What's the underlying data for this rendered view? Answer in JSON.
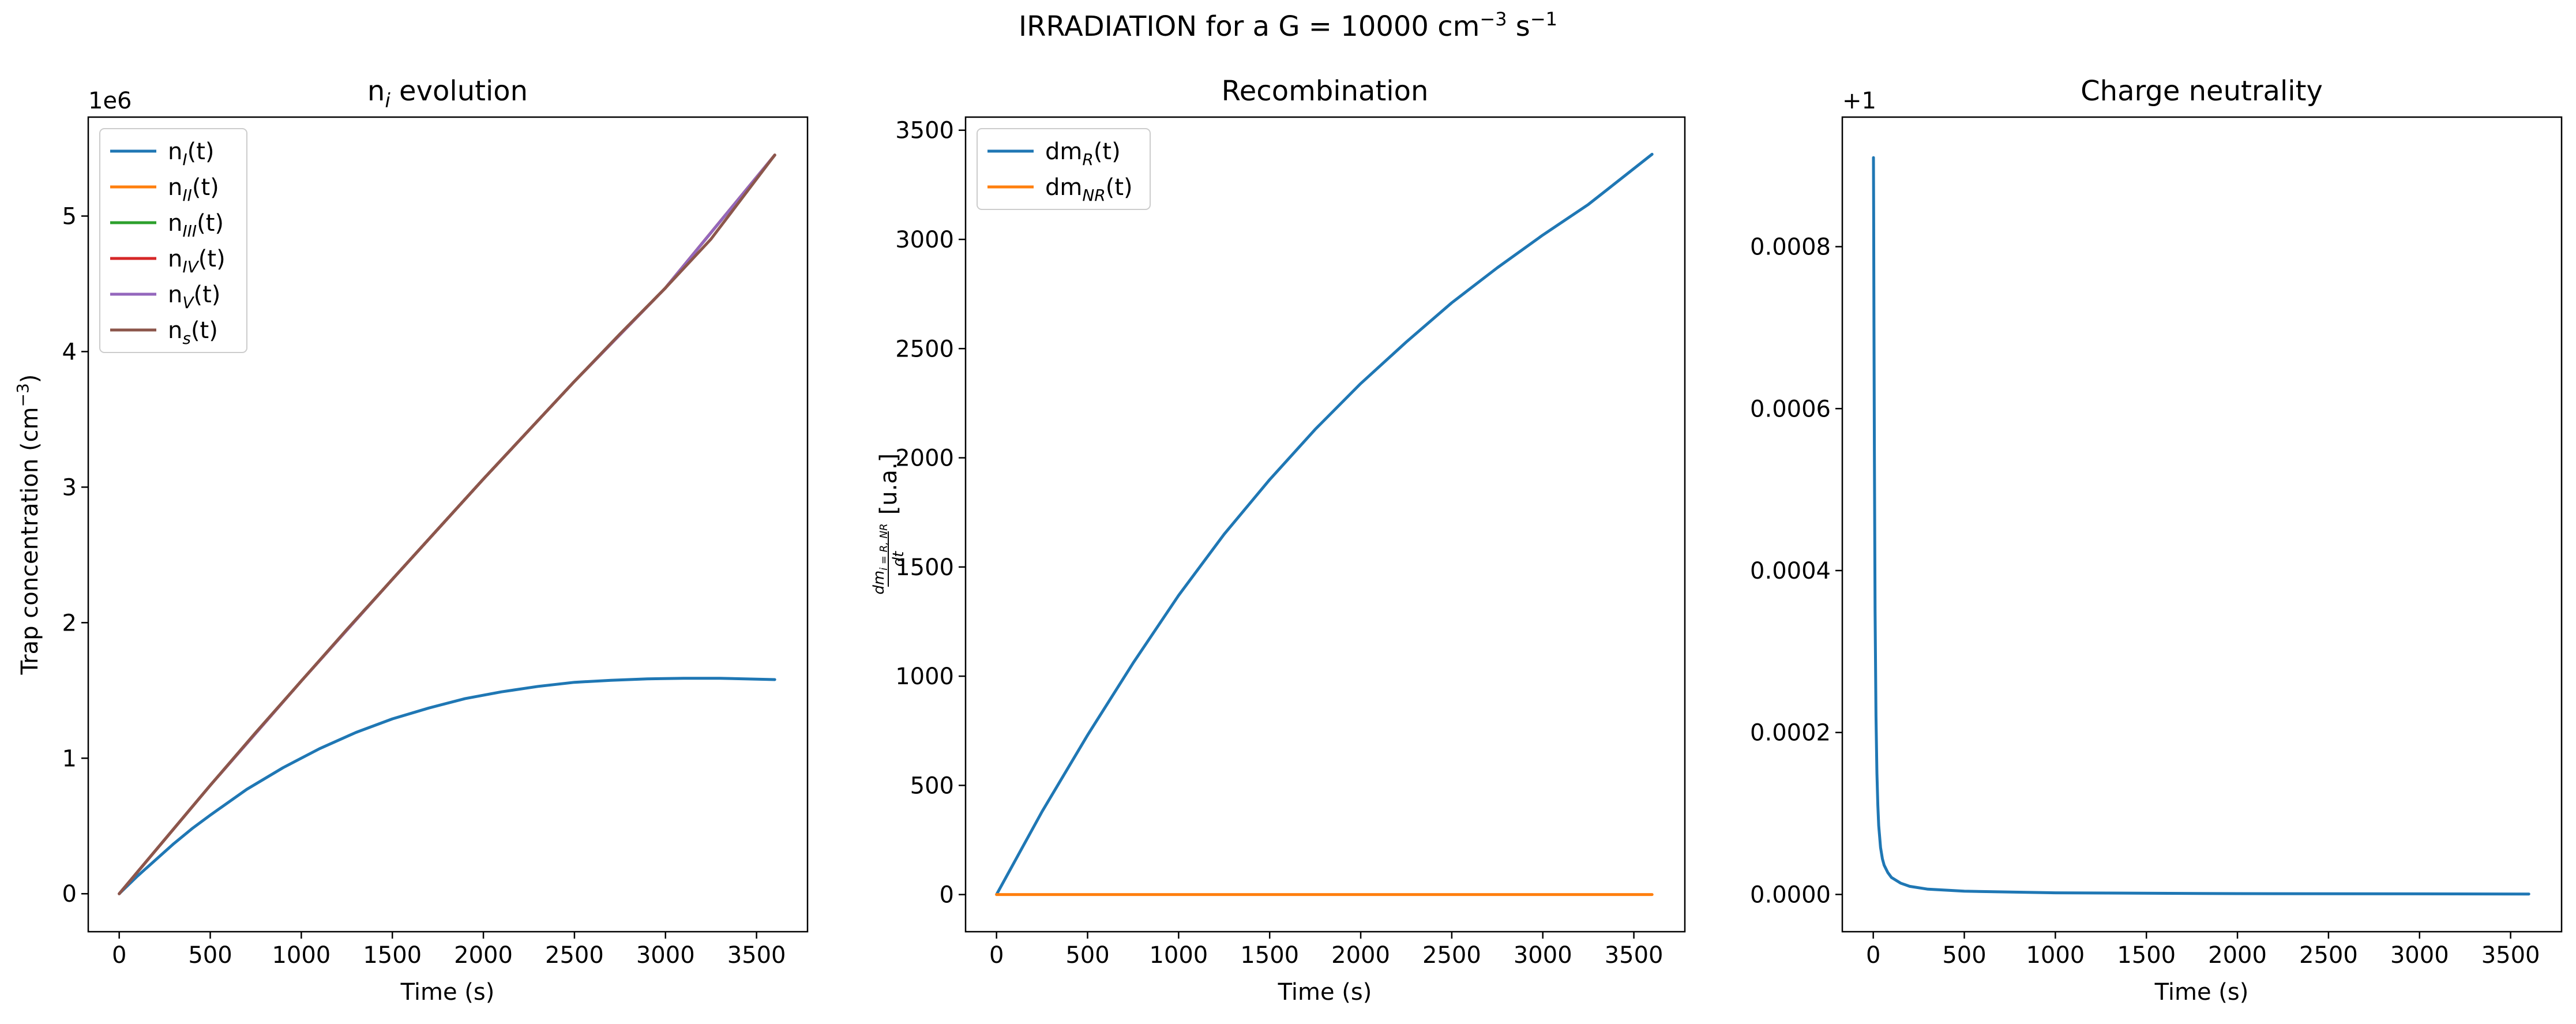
{
  "figure": {
    "suptitle": "IRRADIATION for a G = 10000 cm",
    "suptitle_sup1": "−3",
    "suptitle_mid": " s",
    "suptitle_sup2": "−1"
  },
  "chart_data": [
    {
      "type": "line",
      "title_main": "n",
      "title_sub": "i",
      "title_rest": " evolution",
      "xlabel": "Time (s)",
      "ylabel_main": "Trap concentration (cm",
      "ylabel_sup": "−3",
      "ylabel_end": ")",
      "offset_text": "1e6",
      "xlim": [
        -170,
        3780
      ],
      "ylim": [
        -0.28,
        5.73
      ],
      "xticks": [
        0,
        500,
        1000,
        1500,
        2000,
        2500,
        3000,
        3500
      ],
      "xtick_labels": [
        "0",
        "500",
        "1000",
        "1500",
        "2000",
        "2500",
        "3000",
        "3500"
      ],
      "yticks": [
        0,
        1,
        2,
        3,
        4,
        5
      ],
      "ytick_labels": [
        "0",
        "1",
        "2",
        "3",
        "4",
        "5"
      ],
      "legend_position": "top-left",
      "series": [
        {
          "name_main": "n",
          "name_sub": "I",
          "name_end": "(t)",
          "color": "#1f77b4",
          "x": [
            0,
            100,
            200,
            300,
            400,
            500,
            700,
            900,
            1100,
            1300,
            1500,
            1700,
            1900,
            2100,
            2300,
            2500,
            2700,
            2900,
            3100,
            3300,
            3600
          ],
          "y": [
            0,
            0.13,
            0.25,
            0.37,
            0.48,
            0.58,
            0.77,
            0.93,
            1.07,
            1.19,
            1.29,
            1.37,
            1.44,
            1.49,
            1.53,
            1.56,
            1.575,
            1.585,
            1.59,
            1.59,
            1.58
          ]
        },
        {
          "name_main": "n",
          "name_sub": "II",
          "name_end": "(t)",
          "color": "#ff7f0e",
          "x": [
            0,
            500,
            1000,
            1500,
            2000,
            2500,
            3000,
            3600
          ],
          "y": [
            0,
            0.8,
            1.57,
            2.32,
            3.06,
            3.78,
            4.47,
            5.45
          ]
        },
        {
          "name_main": "n",
          "name_sub": "III",
          "name_end": "(t)",
          "color": "#2ca02c",
          "x": [
            0,
            500,
            1000,
            1500,
            2000,
            2500,
            3000,
            3600
          ],
          "y": [
            0,
            0.8,
            1.57,
            2.32,
            3.06,
            3.78,
            4.47,
            5.45
          ]
        },
        {
          "name_main": "n",
          "name_sub": "IV",
          "name_end": "(t)",
          "color": "#d62728",
          "x": [
            0,
            500,
            1000,
            1500,
            2000,
            2500,
            3000,
            3600
          ],
          "y": [
            0,
            0.8,
            1.57,
            2.32,
            3.06,
            3.78,
            4.47,
            5.45
          ]
        },
        {
          "name_main": "n",
          "name_sub": "V",
          "name_end": "(t)",
          "color": "#9467bd",
          "x": [
            0,
            500,
            1000,
            1500,
            2000,
            2500,
            3000,
            3600
          ],
          "y": [
            0,
            0.8,
            1.57,
            2.32,
            3.06,
            3.78,
            4.47,
            5.45
          ]
        },
        {
          "name_main": "n",
          "name_sub": "s",
          "name_end": "(t)",
          "color": "#8c564b",
          "x": [
            0,
            100,
            200,
            300,
            400,
            500,
            750,
            1000,
            1250,
            1500,
            1750,
            2000,
            2250,
            2500,
            2750,
            3000,
            3250,
            3600
          ],
          "y": [
            0,
            0.16,
            0.32,
            0.48,
            0.64,
            0.8,
            1.19,
            1.57,
            1.95,
            2.32,
            2.69,
            3.06,
            3.42,
            3.78,
            4.13,
            4.47,
            4.83,
            5.45
          ]
        }
      ]
    },
    {
      "type": "line",
      "title_main": "Recombination",
      "xlabel": "Time (s)",
      "ylabel_main": "dm",
      "ylabel_sub": "i = R, NR",
      "ylabel_den": "dt",
      "ylabel_end": "[u.a.]",
      "xlim": [
        -170,
        3780
      ],
      "ylim": [
        -170,
        3560
      ],
      "xticks": [
        0,
        500,
        1000,
        1500,
        2000,
        2500,
        3000,
        3500
      ],
      "xtick_labels": [
        "0",
        "500",
        "1000",
        "1500",
        "2000",
        "2500",
        "3000",
        "3500"
      ],
      "yticks": [
        0,
        500,
        1000,
        1500,
        2000,
        2500,
        3000,
        3500
      ],
      "ytick_labels": [
        "0",
        "500",
        "1000",
        "1500",
        "2000",
        "2500",
        "3000",
        "3500"
      ],
      "legend_position": "top-left",
      "series": [
        {
          "name_main": "dm",
          "name_sub": "R",
          "name_end": "(t)",
          "color": "#1f77b4",
          "x": [
            0,
            250,
            500,
            750,
            1000,
            1250,
            1500,
            1750,
            2000,
            2250,
            2500,
            2750,
            3000,
            3250,
            3600
          ],
          "y": [
            0,
            380,
            730,
            1060,
            1370,
            1650,
            1900,
            2130,
            2340,
            2530,
            2710,
            2870,
            3020,
            3160,
            3390
          ]
        },
        {
          "name_main": "dm",
          "name_sub": "NR",
          "name_end": "(t)",
          "color": "#ff7f0e",
          "x": [
            0,
            3600
          ],
          "y": [
            0,
            0
          ]
        }
      ]
    },
    {
      "type": "line",
      "title_main": "Charge neutrality",
      "xlabel": "Time (s)",
      "offset_text": "+1",
      "xlim": [
        -170,
        3780
      ],
      "ylim": [
        -4.6e-05,
        0.00096
      ],
      "xticks": [
        0,
        500,
        1000,
        1500,
        2000,
        2500,
        3000,
        3500
      ],
      "xtick_labels": [
        "0",
        "500",
        "1000",
        "1500",
        "2000",
        "2500",
        "3000",
        "3500"
      ],
      "yticks": [
        0,
        0.0002,
        0.0004,
        0.0006,
        0.0008
      ],
      "ytick_labels": [
        "0.0000",
        "0.0002",
        "0.0004",
        "0.0006",
        "0.0008"
      ],
      "series": [
        {
          "name_main": "",
          "color": "#1f77b4",
          "x": [
            1,
            2,
            4,
            6,
            10,
            15,
            20,
            25,
            30,
            40,
            50,
            60,
            80,
            100,
            150,
            200,
            300,
            500,
            1000,
            2000,
            3600
          ],
          "y": [
            0.00091,
            0.00085,
            0.0007,
            0.00055,
            0.00035,
            0.00022,
            0.00015,
            0.00011,
            8.5e-05,
            5.8e-05,
            4.4e-05,
            3.6e-05,
            2.7e-05,
            2.1e-05,
            1.4e-05,
            1e-05,
            6.5e-06,
            4e-06,
            2e-06,
            1e-06,
            5e-07
          ]
        }
      ]
    }
  ]
}
